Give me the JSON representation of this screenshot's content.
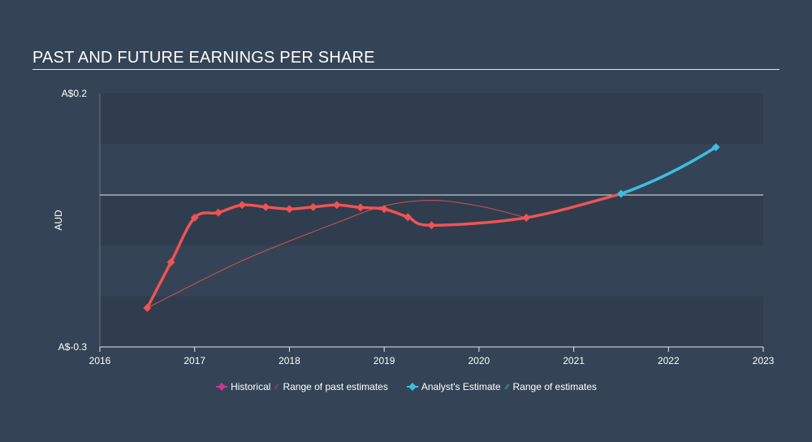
{
  "title": "PAST AND FUTURE EARNINGS PER SHARE",
  "colors": {
    "background": "#344456",
    "band_dark": "#2f3d4e",
    "historical_line": "#f05353",
    "estimate_line": "#3ebde2",
    "range_past": "#f05353",
    "legend_historical": "#c23a8c",
    "legend_estimate": "#3ebde2"
  },
  "chart_data": {
    "type": "line",
    "title": "PAST AND FUTURE EARNINGS PER SHARE",
    "ylabel": "AUD",
    "xlim": [
      2016,
      2023
    ],
    "ylim": [
      -0.3,
      0.2
    ],
    "y_tick_labels": {
      "top": "A$0.2",
      "bottom": "A$-0.3"
    },
    "x_ticks": [
      "2016",
      "2017",
      "2018",
      "2019",
      "2020",
      "2021",
      "2022",
      "2023"
    ],
    "zero_line": 0,
    "series": [
      {
        "name": "Historical",
        "x": [
          2016.5,
          2016.75,
          2017.0,
          2017.25,
          2017.5,
          2017.75,
          2018.0,
          2018.25,
          2018.5,
          2018.75,
          2019.0,
          2019.25,
          2019.5,
          2020.5,
          2021.5
        ],
        "y": [
          -0.223,
          -0.133,
          -0.045,
          -0.035,
          -0.02,
          -0.024,
          -0.028,
          -0.024,
          -0.02,
          -0.025,
          -0.028,
          -0.044,
          -0.06,
          -0.045,
          0.002
        ]
      },
      {
        "name": "Range of past estimates",
        "x": [
          2016.5,
          2017.5,
          2018.5,
          2019.0,
          2019.5,
          2020.0,
          2020.5
        ],
        "y": [
          -0.223,
          -0.13,
          -0.055,
          -0.022,
          -0.011,
          -0.022,
          -0.045
        ]
      },
      {
        "name": "Analyst's Estimate",
        "x": [
          2021.5,
          2022.5
        ],
        "y": [
          0.002,
          0.094
        ]
      }
    ],
    "legend": [
      "Historical",
      "Range of past estimates",
      "Analyst's Estimate",
      "Range of estimates"
    ],
    "legend_position": "bottom"
  }
}
